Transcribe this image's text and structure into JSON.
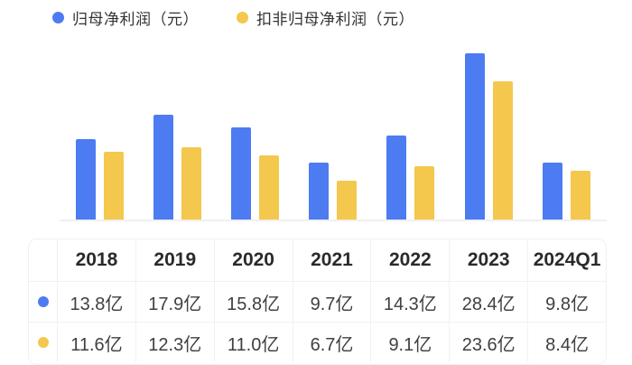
{
  "legend": {
    "items": [
      {
        "key": "net-profit",
        "label": "归母净利润（元）",
        "color": "#4d7bf2"
      },
      {
        "key": "deducted-net-profit",
        "label": "扣非归母净利润（元）",
        "color": "#f4c74d"
      }
    ]
  },
  "chart_data": {
    "type": "bar",
    "title": "",
    "xlabel": "",
    "ylabel": "",
    "unit": "亿",
    "categories": [
      "2018",
      "2019",
      "2020",
      "2021",
      "2022",
      "2023",
      "2024Q1"
    ],
    "series": [
      {
        "name": "归母净利润（元）",
        "key": "net-profit",
        "color": "#4d7bf2",
        "values": [
          13.8,
          17.9,
          15.8,
          9.7,
          14.3,
          28.4,
          9.8
        ],
        "labels": [
          "13.8亿",
          "17.9亿",
          "15.8亿",
          "9.7亿",
          "14.3亿",
          "28.4亿",
          "9.8亿"
        ]
      },
      {
        "name": "扣非归母净利润（元）",
        "key": "deducted-net-profit",
        "color": "#f4c74d",
        "values": [
          11.6,
          12.3,
          11.0,
          6.7,
          9.1,
          23.6,
          8.4
        ],
        "labels": [
          "11.6亿",
          "12.3亿",
          "11.0亿",
          "6.7亿",
          "9.1亿",
          "23.6亿",
          "8.4亿"
        ]
      }
    ],
    "ylim": [
      0,
      28.4
    ],
    "grid": false,
    "legend_position": "top-left"
  },
  "colors": {
    "series_blue": "#4d7bf2",
    "series_yellow": "#f4c74d",
    "axis_line": "#f0f0f0",
    "table_border": "#f1f1f1",
    "header_text": "#2a2a2a",
    "cell_text": "#404040",
    "legend_text": "#333333",
    "background": "#ffffff"
  }
}
